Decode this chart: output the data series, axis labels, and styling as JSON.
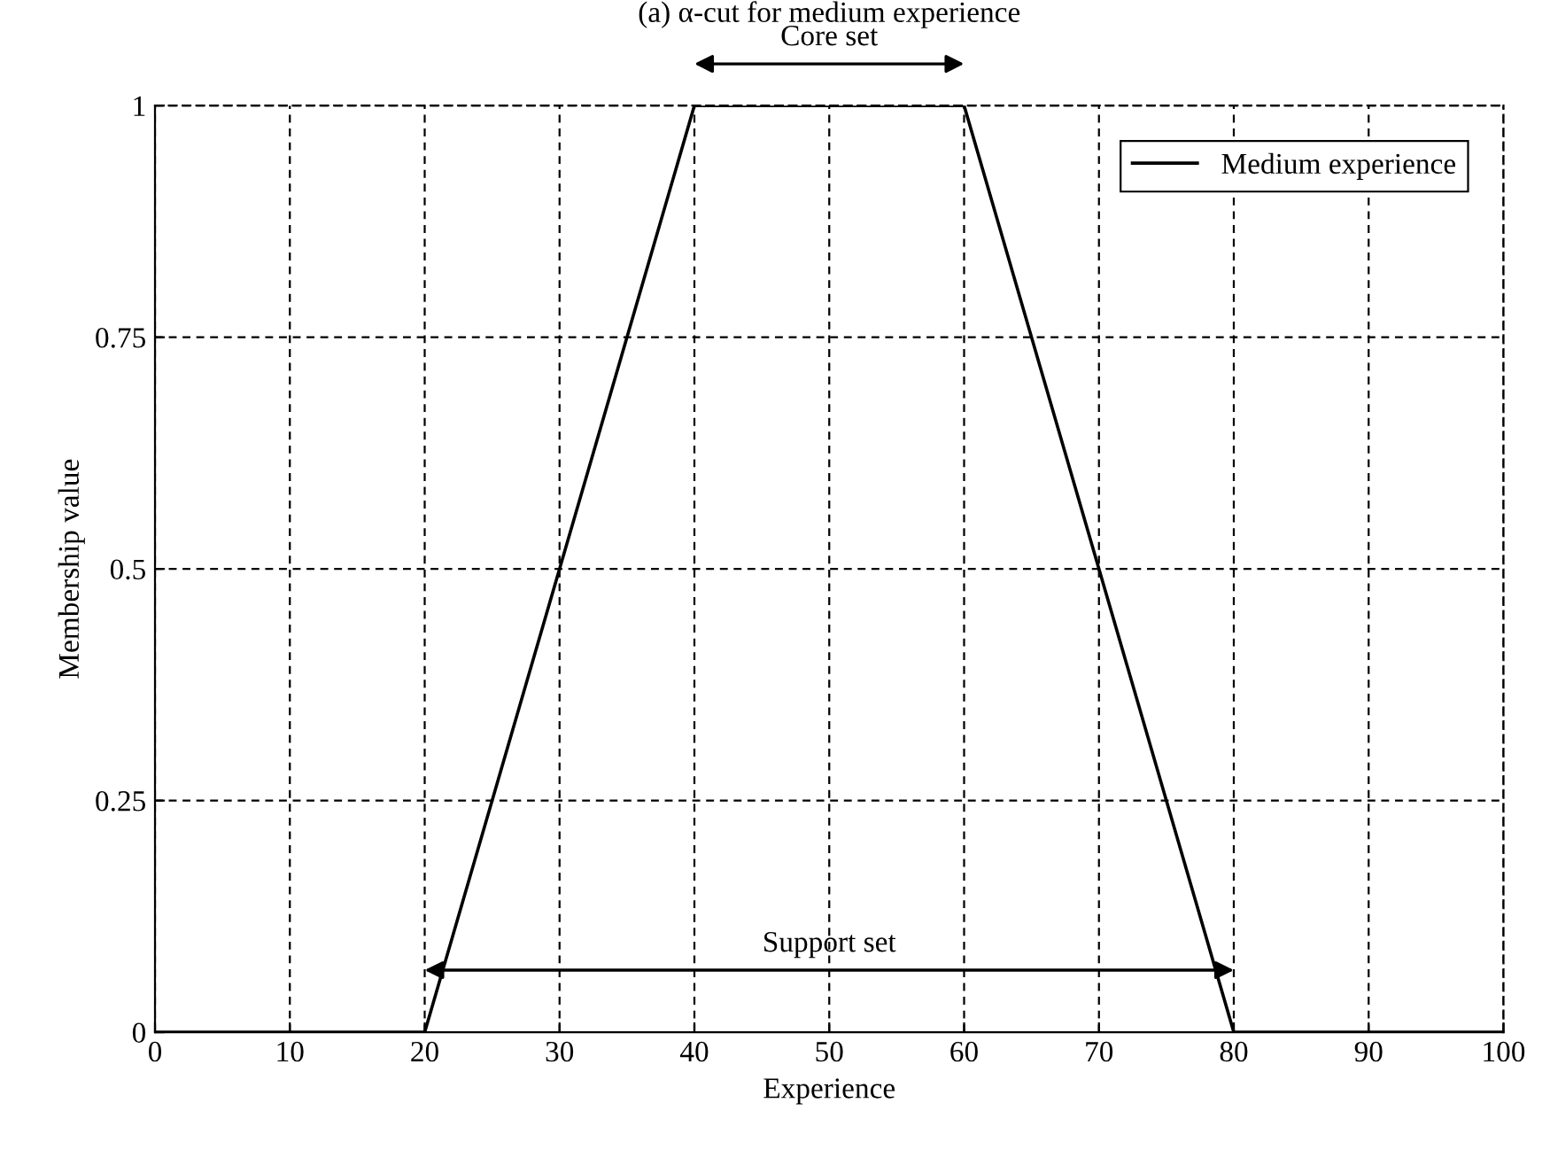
{
  "chart_data": {
    "type": "line",
    "title": "(a) α-cut for medium experience",
    "xlabel": "Experience",
    "ylabel": "Membership value",
    "series": [
      {
        "name": "Medium experience",
        "color": "#000000",
        "x": [
          0,
          20,
          40,
          60,
          80,
          100
        ],
        "values": [
          0,
          0,
          1,
          1,
          0,
          0
        ]
      }
    ],
    "annotations": [
      "Core set",
      "Support set"
    ],
    "xlim": [
      0,
      100
    ],
    "ylim": [
      0,
      1
    ],
    "xticks": [
      0,
      10,
      20,
      30,
      40,
      50,
      60,
      70,
      80,
      90,
      100
    ],
    "yticks": [
      0,
      0.25,
      0.5,
      0.75,
      1
    ],
    "grid": true,
    "legend": "top right",
    "marker": "none",
    "line_style": "solid"
  }
}
